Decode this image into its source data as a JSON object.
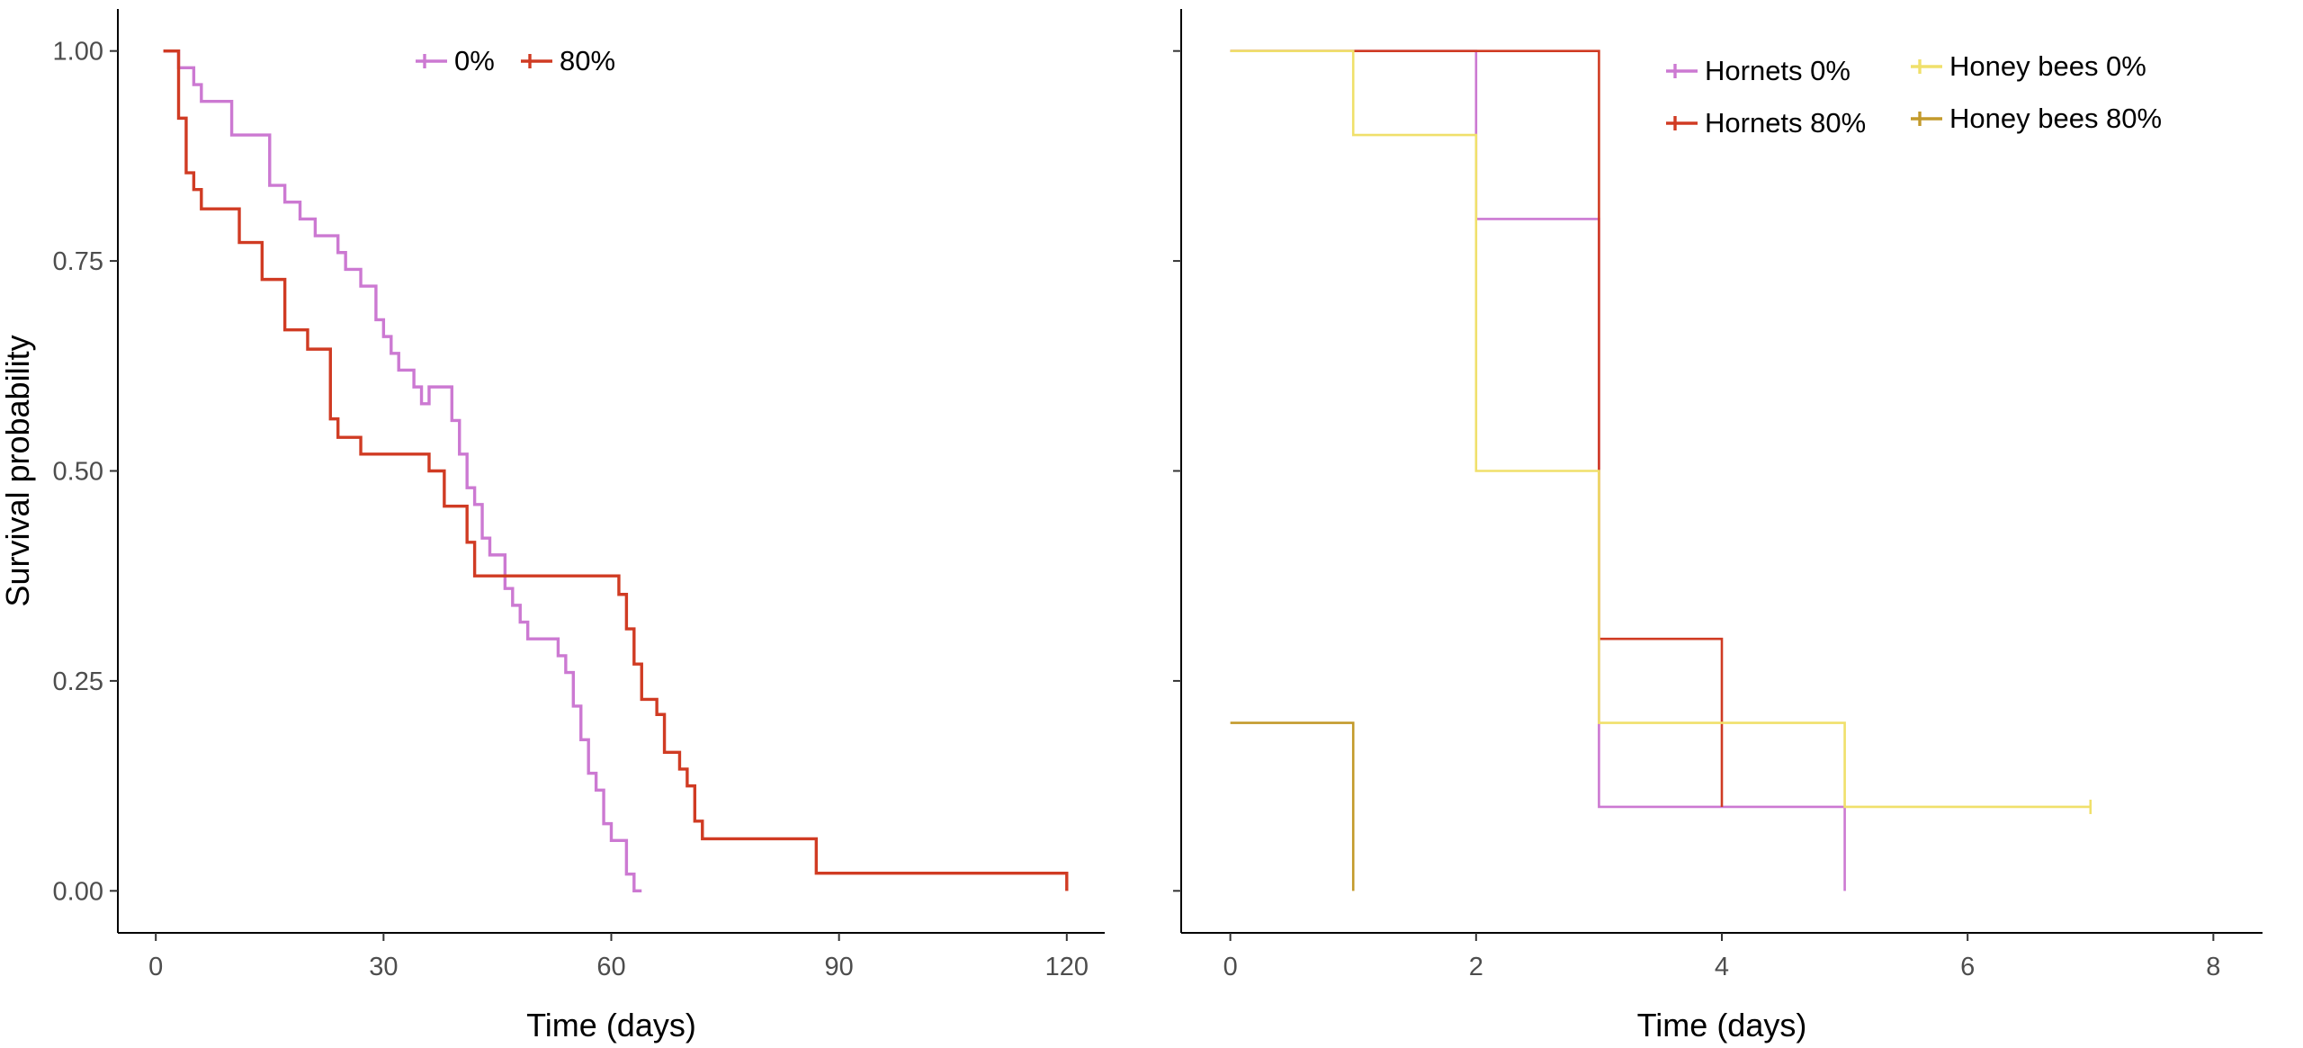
{
  "chart_data": [
    {
      "type": "line",
      "subtype": "kaplan-meier-step",
      "title": "",
      "xlabel": "Time (days)",
      "ylabel": "Survival probability",
      "xlim": [
        -5,
        125
      ],
      "ylim": [
        -0.05,
        1.05
      ],
      "xticks": [
        0,
        30,
        60,
        90,
        120
      ],
      "yticks": [
        0,
        0.25,
        0.5,
        0.75,
        1
      ],
      "xtick_labels": [
        "0",
        "30",
        "60",
        "90",
        "120"
      ],
      "ytick_labels": [
        "0.00",
        "0.25",
        "0.50",
        "0.75",
        "1.00"
      ],
      "grid": false,
      "legend_position": "top",
      "series": [
        {
          "name": "0%",
          "color": "#cc79d2",
          "x": [
            1,
            3,
            5,
            6,
            10,
            15,
            17,
            19,
            21,
            24,
            25,
            27,
            29,
            30,
            31,
            32,
            34,
            35,
            36,
            39,
            40,
            41,
            42,
            43,
            44,
            46,
            47,
            48,
            49,
            53,
            54,
            55,
            56,
            57,
            58,
            59,
            60,
            62,
            63,
            64
          ],
          "y": [
            1.0,
            0.98,
            0.96,
            0.94,
            0.9,
            0.84,
            0.82,
            0.8,
            0.78,
            0.76,
            0.74,
            0.72,
            0.68,
            0.66,
            0.64,
            0.62,
            0.6,
            0.58,
            0.6,
            0.56,
            0.52,
            0.48,
            0.46,
            0.42,
            0.4,
            0.36,
            0.34,
            0.32,
            0.3,
            0.28,
            0.26,
            0.22,
            0.18,
            0.14,
            0.12,
            0.08,
            0.06,
            0.02,
            0.0,
            0.0
          ]
        },
        {
          "name": "80%",
          "color": "#d03b23",
          "x": [
            1,
            3,
            4,
            5,
            6,
            11,
            14,
            17,
            20,
            23,
            24,
            27,
            36,
            38,
            41,
            42,
            61,
            62,
            63,
            64,
            66,
            67,
            69,
            70,
            71,
            72,
            87,
            120
          ],
          "y": [
            1.0,
            0.92,
            0.855,
            0.835,
            0.812,
            0.772,
            0.728,
            0.668,
            0.645,
            0.562,
            0.54,
            0.52,
            0.5,
            0.458,
            0.415,
            0.375,
            0.353,
            0.312,
            0.27,
            0.228,
            0.21,
            0.165,
            0.145,
            0.125,
            0.083,
            0.062,
            0.021,
            0.0
          ]
        }
      ]
    },
    {
      "type": "line",
      "subtype": "kaplan-meier-step",
      "title": "",
      "xlabel": "Time (days)",
      "ylabel": "",
      "xlim": [
        -0.4,
        8.4
      ],
      "ylim": [
        -0.05,
        1.05
      ],
      "xticks": [
        0,
        2,
        4,
        6,
        8
      ],
      "yticks": [
        0,
        0.25,
        0.5,
        0.75,
        1
      ],
      "xtick_labels": [
        "0",
        "2",
        "4",
        "6",
        "8"
      ],
      "grid": false,
      "legend_position": "top-right",
      "series": [
        {
          "name": "Hornets 0%",
          "color": "#cc79d2",
          "x": [
            0,
            2,
            3,
            5
          ],
          "y": [
            1.0,
            0.8,
            0.1,
            0.0
          ]
        },
        {
          "name": "Hornets 80%",
          "color": "#d03b23",
          "x": [
            0,
            3,
            4
          ],
          "y": [
            1.0,
            0.3,
            0.1
          ]
        },
        {
          "name": "Honey bees 0%",
          "color": "#f0e06b",
          "x": [
            0,
            1,
            2,
            3,
            5,
            7
          ],
          "y": [
            1.0,
            0.9,
            0.5,
            0.2,
            0.1,
            0.1
          ]
        },
        {
          "name": "Honey bees 80%",
          "color": "#c39a2b",
          "x": [
            0,
            1
          ],
          "y": [
            0.2,
            0.0
          ]
        }
      ]
    }
  ]
}
